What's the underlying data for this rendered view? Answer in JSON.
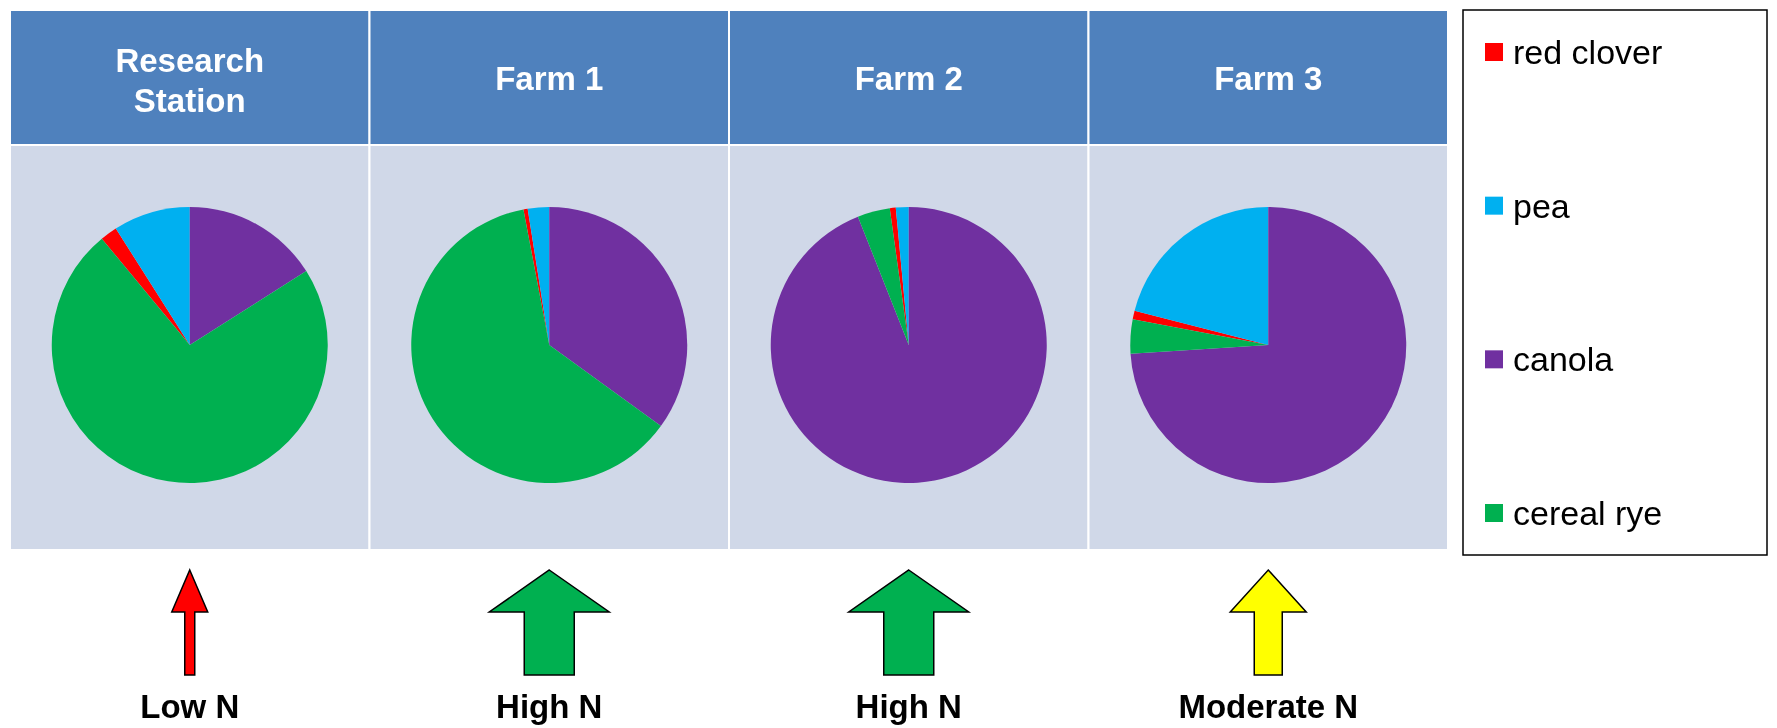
{
  "chart_data": [
    {
      "type": "pie",
      "title": "Research Station",
      "categories": [
        "red clover",
        "pea",
        "canola",
        "cereal rye"
      ],
      "values": [
        2,
        9,
        16,
        73
      ],
      "colors": [
        "#ff0000",
        "#00b0f0",
        "#7030a0",
        "#00b050"
      ],
      "annotations": [
        "Low N"
      ],
      "legend": "right"
    },
    {
      "type": "pie",
      "title": "Farm 1",
      "categories": [
        null,
        null,
        null,
        null
      ],
      "values": [
        0.5,
        2.5,
        35,
        62
      ],
      "colors": [
        "#ff0000",
        "#00b0f0",
        "#7030a0",
        "#00b050"
      ],
      "annotations": [
        "High N"
      ]
    },
    {
      "type": "pie",
      "title": "Farm 2",
      "categories": [
        null,
        null,
        null,
        null
      ],
      "values": [
        0.7,
        1.5,
        94,
        3.8
      ],
      "colors": [
        "#ff0000",
        "#00b0f0",
        "#7030a0",
        "#00b050"
      ],
      "annotations": [
        "High N"
      ]
    },
    {
      "type": "pie",
      "title": "Farm 3",
      "categories": [
        null,
        null,
        null,
        null
      ],
      "values": [
        1,
        21,
        74,
        4
      ],
      "colors": [
        "#ff0000",
        "#00b0f0",
        "#7030a0",
        "#00b050"
      ],
      "annotations": [
        "Moderate N"
      ]
    }
  ]
}
